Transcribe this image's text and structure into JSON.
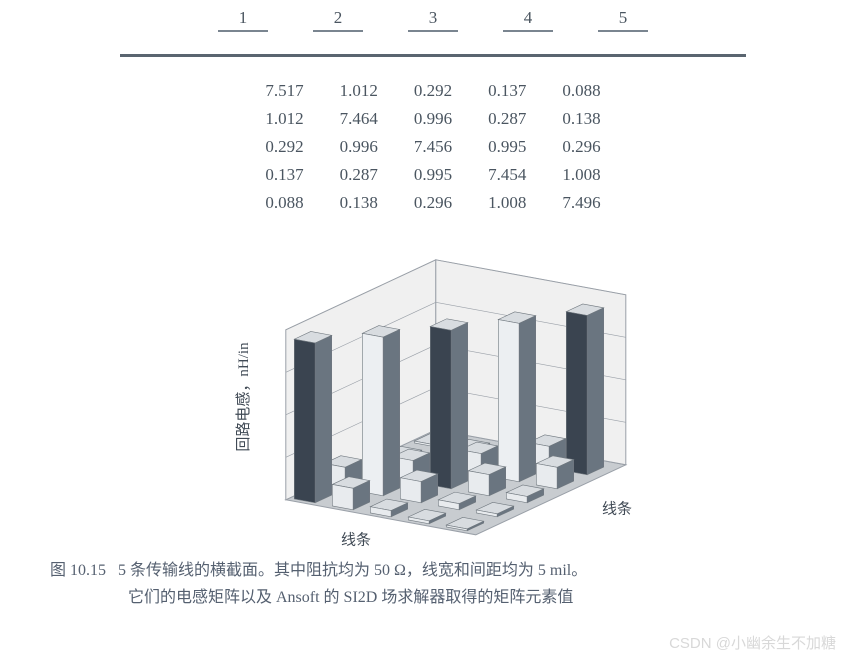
{
  "table": {
    "headers": [
      "1",
      "2",
      "3",
      "4",
      "5"
    ],
    "rows": [
      [
        "7.517",
        "1.012",
        "0.292",
        "0.137",
        "0.088"
      ],
      [
        "1.012",
        "7.464",
        "0.996",
        "0.287",
        "0.138"
      ],
      [
        "0.292",
        "0.996",
        "7.456",
        "0.995",
        "0.296"
      ],
      [
        "0.137",
        "0.287",
        "0.995",
        "7.454",
        "1.008"
      ],
      [
        "0.088",
        "0.138",
        "0.296",
        "1.008",
        "7.496"
      ]
    ],
    "header_fontsize": 17,
    "cell_fontsize": 17,
    "text_color": "#4a5560",
    "rule_color": "#5a6570"
  },
  "chart": {
    "type": "3d-bar",
    "y_label": "回路电感，nH/in",
    "x_label_front": "线条",
    "x_label_side": "线条",
    "values": [
      [
        7.517,
        1.012,
        0.292,
        0.137,
        0.088
      ],
      [
        1.012,
        7.464,
        0.996,
        0.287,
        0.138
      ],
      [
        0.292,
        0.996,
        7.456,
        0.995,
        0.296
      ],
      [
        0.137,
        0.287,
        0.995,
        7.454,
        1.008
      ],
      [
        0.088,
        0.138,
        0.296,
        1.008,
        7.496
      ]
    ],
    "z_max": 8,
    "colors": {
      "bar_top": "#d8dce0",
      "bar_front_light": "#e8ebee",
      "bar_front_dark": "#3a4450",
      "bar_side": "#6a7580",
      "wall": "#f0f0f0",
      "wall_line": "#9aa0a8",
      "floor": "#c8ccd0",
      "axis_text": "#404a55"
    },
    "label_fontsize": 15
  },
  "caption": {
    "prefix": "图 10.15",
    "line1": "5 条传输线的横截面。其中阻抗均为 50 Ω，线宽和间距均为 5 mil。",
    "line2": "它们的电感矩阵以及 Ansoft 的 SI2D 场求解器取得的矩阵元素值",
    "fontsize": 16,
    "color": "#556070"
  },
  "watermark": "CSDN @小幽余生不加糖"
}
